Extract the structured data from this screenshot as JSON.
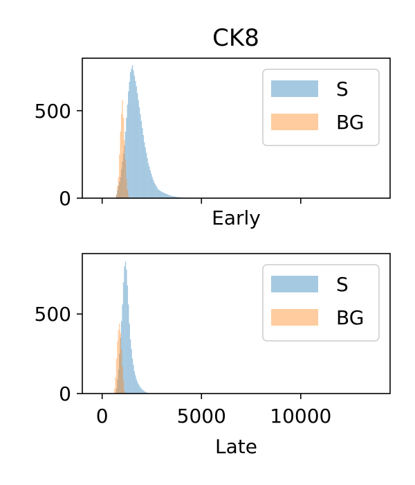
{
  "figure_title": "CK8",
  "colors": {
    "S": "#1f77b4",
    "BG": "#ff7f0e",
    "alpha": 0.4
  },
  "chart_data": [
    {
      "type": "histogram",
      "xlabel": "Early",
      "ylabel": "",
      "xlim": [
        -1000,
        14500
      ],
      "ylim": [
        0,
        800
      ],
      "x_ticks": [
        0,
        5000,
        10000
      ],
      "x_tick_labels": [
        "",
        "",
        ""
      ],
      "y_ticks": [
        0,
        500
      ],
      "y_tick_labels": [
        "0",
        "500"
      ],
      "legend": {
        "position": "top-right",
        "entries": [
          "S",
          "BG"
        ]
      },
      "series": [
        {
          "name": "S",
          "x": [
            700,
            900,
            1100,
            1200,
            1300,
            1400,
            1500,
            1600,
            1700,
            1800,
            1900,
            2000,
            2100,
            2200,
            2300,
            2400,
            2500,
            2600,
            2700,
            2800,
            3000,
            3200,
            3400,
            3600,
            3900,
            4300
          ],
          "y": [
            20,
            120,
            300,
            460,
            610,
            720,
            760,
            700,
            640,
            560,
            480,
            400,
            320,
            260,
            200,
            160,
            120,
            90,
            70,
            50,
            35,
            25,
            15,
            10,
            5,
            2
          ]
        },
        {
          "name": "BG",
          "x": [
            700,
            800,
            850,
            900,
            950,
            1000,
            1050,
            1100,
            1150,
            1200,
            1250,
            1300
          ],
          "y": [
            20,
            120,
            250,
            380,
            480,
            560,
            460,
            330,
            220,
            110,
            50,
            15
          ]
        }
      ]
    },
    {
      "type": "histogram",
      "xlabel": "Late",
      "ylabel": "",
      "xlim": [
        -1000,
        14500
      ],
      "ylim": [
        0,
        880
      ],
      "x_ticks": [
        0,
        5000,
        10000
      ],
      "x_tick_labels": [
        "0",
        "5000",
        "10000"
      ],
      "y_ticks": [
        0,
        500
      ],
      "y_tick_labels": [
        "0",
        "500"
      ],
      "legend": {
        "position": "top-right",
        "entries": [
          "S",
          "BG"
        ]
      },
      "series": [
        {
          "name": "S",
          "x": [
            700,
            800,
            900,
            1000,
            1050,
            1100,
            1150,
            1200,
            1250,
            1300,
            1350,
            1400,
            1500,
            1600,
            1700,
            1800,
            1900,
            2000,
            2100,
            2200,
            2300
          ],
          "y": [
            30,
            150,
            350,
            560,
            700,
            800,
            830,
            780,
            680,
            560,
            440,
            340,
            220,
            140,
            90,
            60,
            40,
            25,
            15,
            8,
            3
          ]
        },
        {
          "name": "BG",
          "x": [
            600,
            650,
            700,
            750,
            800,
            850,
            900,
            950,
            1000,
            1050,
            1100
          ],
          "y": [
            30,
            100,
            220,
            330,
            400,
            440,
            380,
            280,
            170,
            80,
            20
          ]
        }
      ]
    }
  ]
}
